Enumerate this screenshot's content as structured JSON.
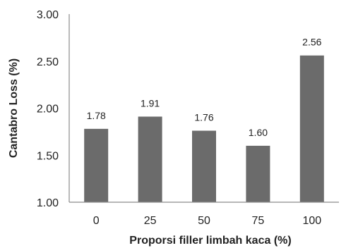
{
  "chart_data": {
    "type": "bar",
    "categories": [
      "0",
      "25",
      "50",
      "75",
      "100"
    ],
    "values": [
      1.78,
      1.91,
      1.76,
      1.6,
      2.56
    ],
    "value_labels": [
      "1.78",
      "1.91",
      "1.76",
      "1.60",
      "2.56"
    ],
    "ylabel": "Cantabro Loss (%)",
    "xlabel": "Proporsi filler limbah kaca (%)",
    "ylim": [
      1.0,
      3.0
    ],
    "y_ticks": [
      1.0,
      1.5,
      2.0,
      2.5,
      3.0
    ],
    "y_tick_labels": [
      "1.00",
      "1.50",
      "2.00",
      "2.50",
      "3.00"
    ],
    "grid": false,
    "bar_color": "#6b6b6b"
  }
}
